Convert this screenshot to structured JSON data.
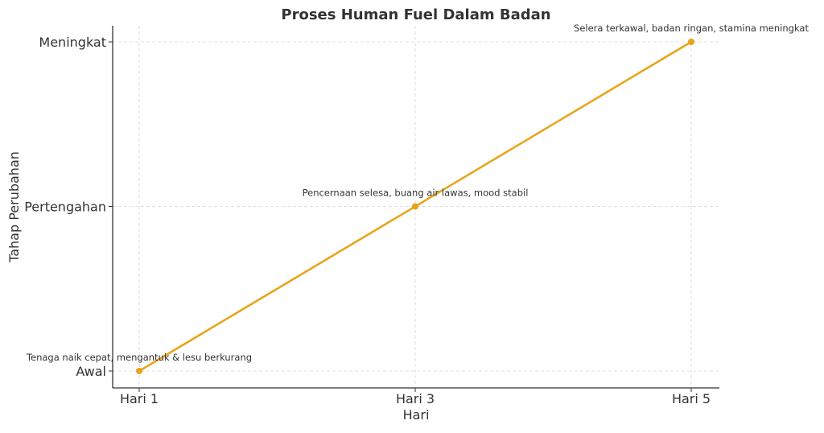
{
  "chart_data": {
    "type": "line",
    "title": "Proses Human Fuel Dalam Badan",
    "xlabel": "Hari",
    "ylabel": "Tahap Perubahan",
    "categories": [
      "Hari 1",
      "Hari 3",
      "Hari 5"
    ],
    "y_categories": [
      "Awal",
      "Pertengahan",
      "Meningkat"
    ],
    "values": [
      0,
      1,
      2
    ],
    "annotations": [
      "Tenaga naik cepat, mengantuk & lesu berkurang",
      "Pencernaan selesa, buang air lawas, mood stabil",
      "Selera terkawal, badan ringan, stamina meningkat"
    ],
    "grid": true,
    "marker": "circle",
    "color": "#E8A317"
  }
}
